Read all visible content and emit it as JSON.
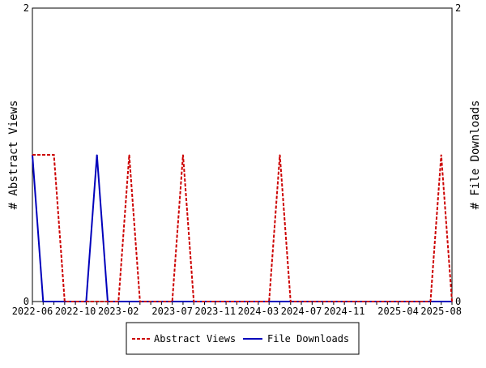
{
  "chart_data": {
    "type": "line",
    "title": "",
    "ylabel_left": "# Abstract Views",
    "ylabel_right": "# File Downloads",
    "ylim": [
      0,
      2
    ],
    "yticks": [
      "0",
      "2"
    ],
    "x": [
      "2022-06",
      "2022-07",
      "2022-08",
      "2022-09",
      "2022-10",
      "2022-11",
      "2022-12",
      "2023-01",
      "2023-02",
      "2023-03",
      "2023-04",
      "2023-05",
      "2023-06",
      "2023-07",
      "2023-08",
      "2023-09",
      "2023-10",
      "2023-11",
      "2023-12",
      "2024-01",
      "2024-02",
      "2024-03",
      "2024-04",
      "2024-05",
      "2024-06",
      "2024-07",
      "2024-08",
      "2024-09",
      "2024-10",
      "2024-11",
      "2024-12",
      "2025-01",
      "2025-02",
      "2025-03",
      "2025-04",
      "2025-05",
      "2025-06",
      "2025-07",
      "2025-08",
      "2025-09"
    ],
    "xtick_labels": [
      "2022-06",
      "2022-10",
      "2023-02",
      "2023-07",
      "2023-11",
      "2024-03",
      "2024-07",
      "2024-11",
      "2025-04",
      "2025-08"
    ],
    "series": [
      {
        "name": "Abstract Views",
        "color": "#cc0000",
        "dash": true,
        "values": [
          1,
          1,
          1,
          0,
          0,
          0,
          0,
          0,
          0,
          1,
          0,
          0,
          0,
          0,
          1,
          0,
          0,
          0,
          0,
          0,
          0,
          0,
          0,
          1,
          0,
          0,
          0,
          0,
          0,
          0,
          0,
          0,
          0,
          0,
          0,
          0,
          0,
          0,
          1,
          0
        ]
      },
      {
        "name": "File Downloads",
        "color": "#0000bb",
        "dash": false,
        "values": [
          1,
          0,
          0,
          0,
          0,
          0,
          1,
          0,
          0,
          0,
          0,
          0,
          0,
          0,
          0,
          0,
          0,
          0,
          0,
          0,
          0,
          0,
          0,
          0,
          0,
          0,
          0,
          0,
          0,
          0,
          0,
          0,
          0,
          0,
          0,
          0,
          0,
          0,
          0,
          0
        ]
      }
    ],
    "legend": "bottom"
  }
}
